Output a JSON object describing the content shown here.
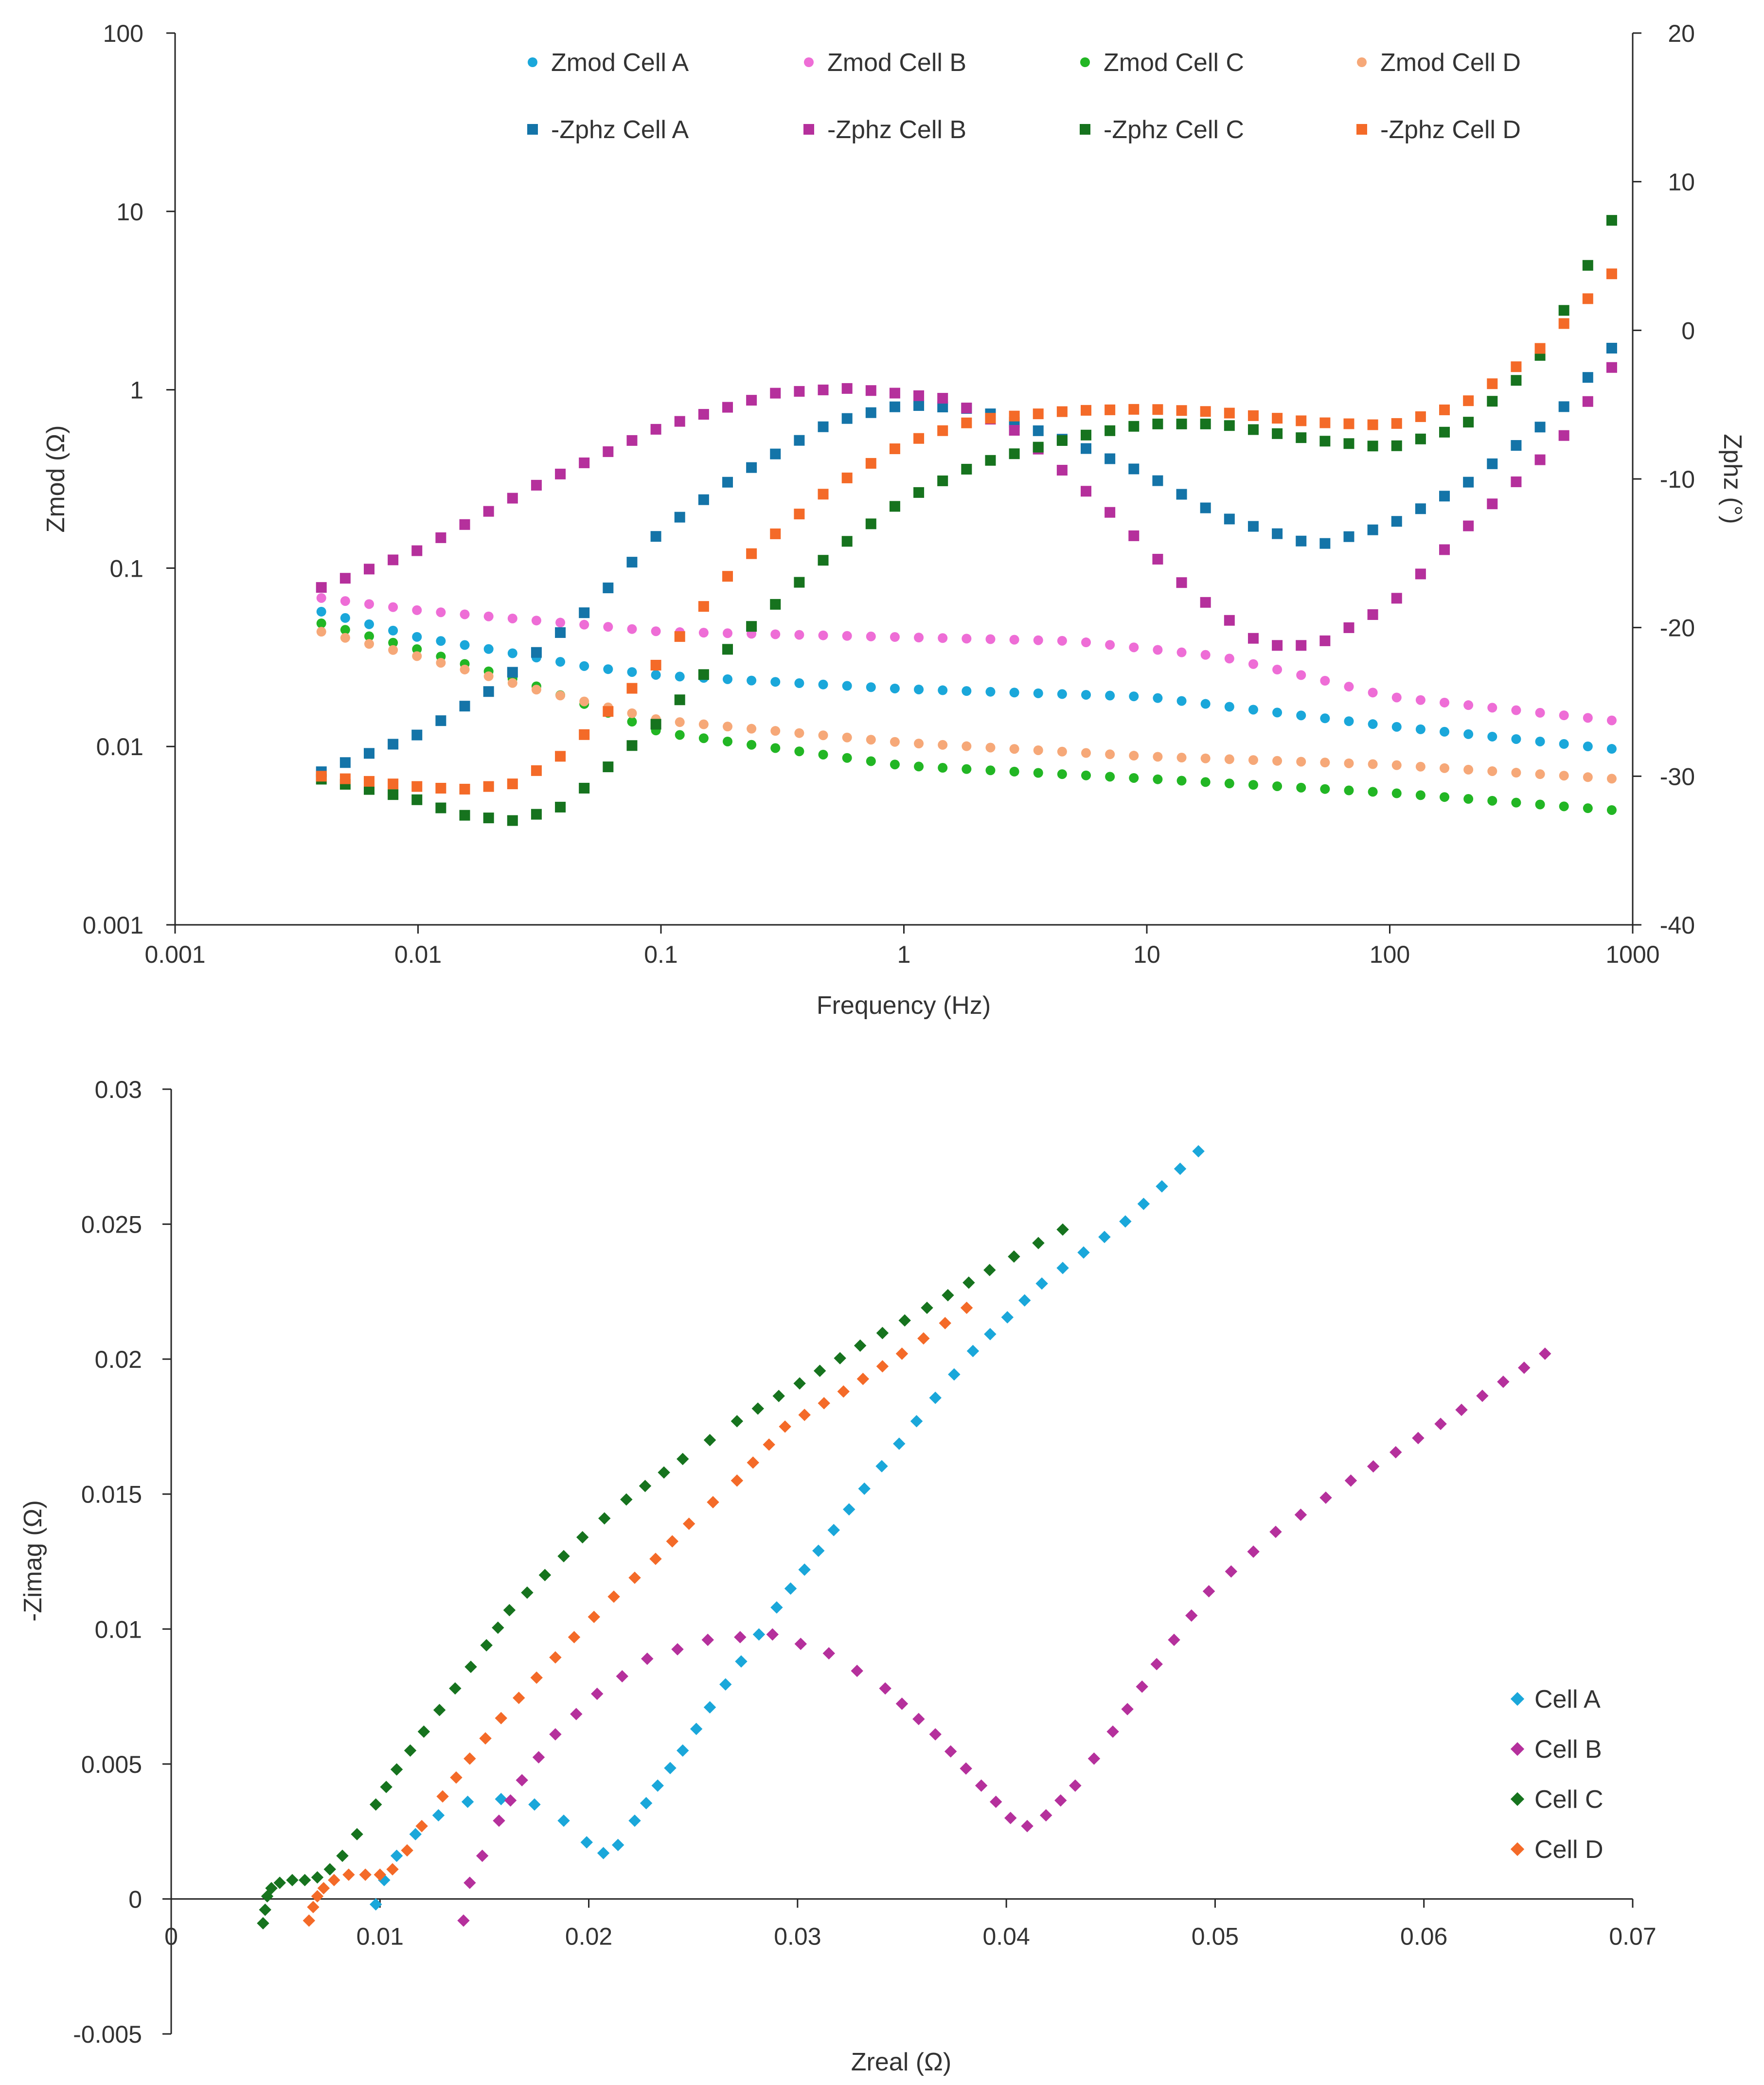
{
  "chart_data": [
    {
      "type": "scatter",
      "title": "",
      "x_scale": "log",
      "xlabel": "Frequency (Hz)",
      "ylabel": "Zmod (Ω)",
      "y2label": "Zphz (°)",
      "xlim": [
        0.001,
        1000
      ],
      "ylim": [
        0.001,
        100
      ],
      "y2lim": [
        -40,
        20
      ],
      "x_ticks": [
        0.001,
        0.01,
        0.1,
        1,
        10,
        100,
        1000
      ],
      "x_tick_labels": [
        "0.001",
        "0.01",
        "0.1",
        "1",
        "10",
        "100",
        "1000"
      ],
      "y_ticks": [
        0.001,
        0.01,
        0.1,
        1,
        10,
        100
      ],
      "y_tick_labels": [
        "0.001",
        "0.01",
        "0.1",
        "1",
        "10",
        "100"
      ],
      "y2_ticks": [
        -40,
        -30,
        -20,
        -10,
        0,
        10,
        20
      ],
      "y2_tick_labels": [
        "-40",
        "-30",
        "-20",
        "-10",
        "0",
        "10",
        "20"
      ],
      "legend_position": "top",
      "x_range_points": {
        "f_start": 0.004,
        "f_end": 820,
        "count": 55
      },
      "series": [
        {
          "name": "Zmod Cell A",
          "axis": "left",
          "marker": "circle",
          "color": "#1AA7DA",
          "curve": [
            [
              0.004,
              0.057
            ],
            [
              0.01,
              0.041
            ],
            [
              0.02,
              0.035
            ],
            [
              0.05,
              0.028
            ],
            [
              0.1,
              0.025
            ],
            [
              1,
              0.021
            ],
            [
              10,
              0.019
            ],
            [
              100,
              0.013
            ],
            [
              820,
              0.0097
            ]
          ]
        },
        {
          "name": "Zmod Cell B",
          "axis": "left",
          "marker": "circle",
          "color": "#EE6DD6",
          "curve": [
            [
              0.004,
              0.068
            ],
            [
              0.01,
              0.058
            ],
            [
              0.05,
              0.048
            ],
            [
              0.1,
              0.044
            ],
            [
              1,
              0.041
            ],
            [
              5,
              0.039
            ],
            [
              20,
              0.032
            ],
            [
              50,
              0.024
            ],
            [
              100,
              0.019
            ],
            [
              820,
              0.014
            ]
          ]
        },
        {
          "name": "Zmod Cell C",
          "axis": "left",
          "marker": "circle",
          "color": "#22B624",
          "curve": [
            [
              0.004,
              0.049
            ],
            [
              0.01,
              0.035
            ],
            [
              0.03,
              0.022
            ],
            [
              0.1,
              0.012
            ],
            [
              1,
              0.0078
            ],
            [
              10,
              0.0066
            ],
            [
              100,
              0.0055
            ],
            [
              820,
              0.0044
            ]
          ]
        },
        {
          "name": "Zmod Cell D",
          "axis": "left",
          "marker": "circle",
          "color": "#F6A878",
          "curve": [
            [
              0.004,
              0.044
            ],
            [
              0.01,
              0.032
            ],
            [
              0.03,
              0.021
            ],
            [
              0.1,
              0.014
            ],
            [
              1,
              0.0105
            ],
            [
              10,
              0.0088
            ],
            [
              100,
              0.0079
            ],
            [
              820,
              0.0066
            ]
          ]
        },
        {
          "name": "-Zphz Cell A",
          "axis": "right",
          "marker": "square",
          "color": "#1474A8",
          "curve": [
            [
              0.004,
              -29.7
            ],
            [
              0.01,
              -27.2
            ],
            [
              0.02,
              -24.2
            ],
            [
              0.05,
              -18.8
            ],
            [
              0.1,
              -13.5
            ],
            [
              0.2,
              -9.9
            ],
            [
              0.5,
              -6.2
            ],
            [
              1,
              -5.0
            ],
            [
              2,
              -5.3
            ],
            [
              5,
              -7.6
            ],
            [
              10,
              -9.7
            ],
            [
              20,
              -12.5
            ],
            [
              50,
              -14.5
            ],
            [
              100,
              -13.1
            ],
            [
              200,
              -10.5
            ],
            [
              500,
              -5.5
            ],
            [
              820,
              -1.2
            ]
          ]
        },
        {
          "name": "-Zphz Cell B",
          "axis": "right",
          "marker": "square",
          "color": "#B5309C",
          "curve": [
            [
              0.004,
              -17.3
            ],
            [
              0.01,
              -14.8
            ],
            [
              0.03,
              -10.5
            ],
            [
              0.1,
              -6.5
            ],
            [
              0.3,
              -4.2
            ],
            [
              0.6,
              -3.9
            ],
            [
              1.5,
              -4.6
            ],
            [
              3,
              -6.9
            ],
            [
              7,
              -12.2
            ],
            [
              15,
              -17.5
            ],
            [
              30,
              -21.2
            ],
            [
              50,
              -21.2
            ],
            [
              100,
              -18.5
            ],
            [
              200,
              -13.5
            ],
            [
              500,
              -7.5
            ],
            [
              820,
              -2.5
            ]
          ]
        },
        {
          "name": "-Zphz Cell C",
          "axis": "right",
          "marker": "square",
          "color": "#16731E",
          "curve": [
            [
              0.004,
              -30.2
            ],
            [
              0.01,
              -31.6
            ],
            [
              0.015,
              -32.6
            ],
            [
              0.025,
              -33.0
            ],
            [
              0.04,
              -32.0
            ],
            [
              0.1,
              -26.2
            ],
            [
              0.2,
              -21.0
            ],
            [
              0.5,
              -15.0
            ],
            [
              1,
              -11.4
            ],
            [
              2,
              -9.0
            ],
            [
              5,
              -7.2
            ],
            [
              10,
              -6.3
            ],
            [
              20,
              -6.3
            ],
            [
              50,
              -7.4
            ],
            [
              100,
              -7.9
            ],
            [
              200,
              -6.5
            ],
            [
              400,
              -2.2
            ],
            [
              820,
              7.4
            ]
          ]
        },
        {
          "name": "-Zphz Cell D",
          "axis": "right",
          "marker": "square",
          "color": "#F46A28",
          "curve": [
            [
              0.004,
              -30.0
            ],
            [
              0.01,
              -30.7
            ],
            [
              0.015,
              -30.9
            ],
            [
              0.025,
              -30.5
            ],
            [
              0.04,
              -28.5
            ],
            [
              0.1,
              -22.2
            ],
            [
              0.2,
              -16.0
            ],
            [
              0.5,
              -10.6
            ],
            [
              1,
              -7.6
            ],
            [
              2,
              -6.0
            ],
            [
              5,
              -5.4
            ],
            [
              10,
              -5.3
            ],
            [
              20,
              -5.5
            ],
            [
              50,
              -6.2
            ],
            [
              100,
              -6.4
            ],
            [
              200,
              -5.0
            ],
            [
              400,
              -1.5
            ],
            [
              820,
              3.8
            ]
          ]
        }
      ]
    },
    {
      "type": "scatter",
      "title": "",
      "xlabel": "Zreal (Ω)",
      "ylabel": "-Zimag (Ω)",
      "xlim": [
        0,
        0.07
      ],
      "ylim": [
        -0.005,
        0.03
      ],
      "x_ticks": [
        0,
        0.01,
        0.02,
        0.03,
        0.04,
        0.05,
        0.06,
        0.07
      ],
      "x_tick_labels": [
        "0",
        "0.01",
        "0.02",
        "0.03",
        "0.04",
        "0.05",
        "0.06",
        "0.07"
      ],
      "y_ticks": [
        -0.005,
        0,
        0.005,
        0.01,
        0.015,
        0.02,
        0.025,
        0.03
      ],
      "y_tick_labels": [
        "-0.005",
        "0",
        "0.005",
        "0.01",
        "0.015",
        "0.02",
        "0.025",
        "0.03"
      ],
      "legend_position": "bottom-right",
      "series": [
        {
          "name": "Cell A",
          "marker": "diamond",
          "color": "#1AA7DA",
          "path": [
            [
              0.0098,
              -0.0002
            ],
            [
              0.0102,
              0.0007
            ],
            [
              0.0108,
              0.0016
            ],
            [
              0.0117,
              0.0024
            ],
            [
              0.0128,
              0.0031
            ],
            [
              0.0142,
              0.0036
            ],
            [
              0.0158,
              0.0037
            ],
            [
              0.0174,
              0.0035
            ],
            [
              0.0188,
              0.0029
            ],
            [
              0.0199,
              0.0021
            ],
            [
              0.0207,
              0.0017
            ],
            [
              0.0214,
              0.002
            ],
            [
              0.0222,
              0.0029
            ],
            [
              0.0233,
              0.0042
            ],
            [
              0.0245,
              0.0055
            ],
            [
              0.0258,
              0.0071
            ],
            [
              0.0273,
              0.0088
            ],
            [
              0.029,
              0.0108
            ],
            [
              0.031,
              0.0129
            ],
            [
              0.0332,
              0.0152
            ],
            [
              0.0357,
              0.0177
            ],
            [
              0.0384,
              0.0203
            ],
            [
              0.0417,
              0.0228
            ],
            [
              0.0457,
              0.0251
            ],
            [
              0.0492,
              0.0277
            ]
          ]
        },
        {
          "name": "Cell B",
          "marker": "diamond",
          "color": "#B5309C",
          "path": [
            [
              0.014,
              -0.0008
            ],
            [
              0.0143,
              0.0006
            ],
            [
              0.0149,
              0.0016
            ],
            [
              0.0157,
              0.0029
            ],
            [
              0.0168,
              0.0044
            ],
            [
              0.0184,
              0.0061
            ],
            [
              0.0204,
              0.0076
            ],
            [
              0.0228,
              0.0089
            ],
            [
              0.0257,
              0.0096
            ],
            [
              0.0288,
              0.0098
            ],
            [
              0.0315,
              0.0091
            ],
            [
              0.0342,
              0.0078
            ],
            [
              0.0366,
              0.0061
            ],
            [
              0.0388,
              0.0042
            ],
            [
              0.0402,
              0.003
            ],
            [
              0.041,
              0.0027
            ],
            [
              0.0419,
              0.0031
            ],
            [
              0.0433,
              0.0042
            ],
            [
              0.0451,
              0.0062
            ],
            [
              0.0472,
              0.0087
            ],
            [
              0.0497,
              0.0114
            ],
            [
              0.0529,
              0.0136
            ],
            [
              0.0565,
              0.0155
            ],
            [
              0.0608,
              0.0176
            ],
            [
              0.0658,
              0.0202
            ]
          ]
        },
        {
          "name": "Cell C",
          "marker": "diamond",
          "color": "#16731E",
          "path": [
            [
              0.0044,
              -0.0009
            ],
            [
              0.0045,
              -0.0004
            ],
            [
              0.0046,
              0.0001
            ],
            [
              0.0048,
              0.0004
            ],
            [
              0.0052,
              0.0006
            ],
            [
              0.0058,
              0.0007
            ],
            [
              0.0064,
              0.0007
            ],
            [
              0.007,
              0.0008
            ],
            [
              0.0076,
              0.0011
            ],
            [
              0.0082,
              0.0016
            ],
            [
              0.0089,
              0.0024
            ],
            [
              0.0098,
              0.0035
            ],
            [
              0.0108,
              0.0048
            ],
            [
              0.0121,
              0.0062
            ],
            [
              0.0136,
              0.0078
            ],
            [
              0.0151,
              0.0094
            ],
            [
              0.0162,
              0.0107
            ],
            [
              0.0179,
              0.012
            ],
            [
              0.0197,
              0.0134
            ],
            [
              0.0218,
              0.0148
            ],
            [
              0.0245,
              0.0163
            ],
            [
              0.0271,
              0.0177
            ],
            [
              0.0301,
              0.0191
            ],
            [
              0.033,
              0.0205
            ],
            [
              0.0362,
              0.0219
            ],
            [
              0.0392,
              0.0233
            ],
            [
              0.0427,
              0.0248
            ]
          ]
        },
        {
          "name": "Cell D",
          "marker": "diamond",
          "color": "#F46A28",
          "path": [
            [
              0.0066,
              -0.0008
            ],
            [
              0.0068,
              -0.0003
            ],
            [
              0.007,
              0.0001
            ],
            [
              0.0073,
              0.0004
            ],
            [
              0.0078,
              0.0007
            ],
            [
              0.0085,
              0.0009
            ],
            [
              0.0093,
              0.0009
            ],
            [
              0.01,
              0.0009
            ],
            [
              0.0106,
              0.0011
            ],
            [
              0.0113,
              0.0018
            ],
            [
              0.012,
              0.0027
            ],
            [
              0.013,
              0.0038
            ],
            [
              0.0143,
              0.0052
            ],
            [
              0.0158,
              0.0067
            ],
            [
              0.0175,
              0.0082
            ],
            [
              0.0193,
              0.0097
            ],
            [
              0.0212,
              0.0112
            ],
            [
              0.0232,
              0.0126
            ],
            [
              0.0248,
              0.0139
            ],
            [
              0.0271,
              0.0155
            ],
            [
              0.0294,
              0.0175
            ],
            [
              0.0322,
              0.0188
            ],
            [
              0.035,
              0.0202
            ],
            [
              0.0381,
              0.0219
            ]
          ]
        }
      ]
    }
  ]
}
